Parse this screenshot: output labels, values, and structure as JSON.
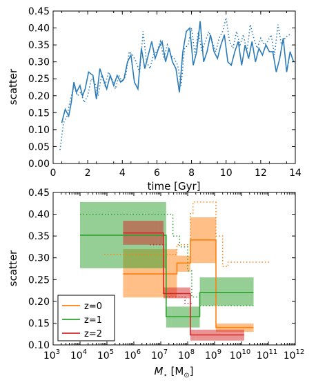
{
  "chart_data": [
    {
      "type": "line",
      "xlabel": "time [Gyr]",
      "ylabel": "scatter",
      "xlim": [
        0,
        14
      ],
      "ylim": [
        0.0,
        0.45
      ],
      "x_ticks": [
        "0",
        "2",
        "4",
        "6",
        "8",
        "10",
        "12",
        "14"
      ],
      "y_ticks": [
        "0.00",
        "0.05",
        "0.10",
        "0.15",
        "0.20",
        "0.25",
        "0.30",
        "0.35",
        "0.40",
        "0.45"
      ],
      "series": [
        {
          "style": "solid",
          "color": "#2b7bb9",
          "x": [
            0.5,
            0.7,
            0.9,
            1.05,
            1.2,
            1.35,
            1.55,
            1.7,
            1.85,
            2.05,
            2.3,
            2.5,
            2.7,
            2.9,
            3.1,
            3.3,
            3.5,
            3.7,
            3.9,
            4.1,
            4.3,
            4.5,
            4.7,
            4.9,
            5.1,
            5.3,
            5.5,
            5.7,
            5.9,
            6.1,
            6.3,
            6.5,
            6.7,
            6.9,
            7.1,
            7.3,
            7.5,
            7.7,
            7.9,
            8.1,
            8.3,
            8.5,
            8.7,
            8.9,
            9.1,
            9.3,
            9.5,
            9.7,
            9.9,
            10.1,
            10.3,
            10.5,
            10.7,
            10.9,
            11.1,
            11.3,
            11.5,
            11.7,
            11.9,
            12.1,
            12.3,
            12.5,
            12.7,
            12.9,
            13.1,
            13.3,
            13.5,
            13.7,
            13.9
          ],
          "y": [
            0.12,
            0.16,
            0.14,
            0.18,
            0.24,
            0.21,
            0.23,
            0.2,
            0.22,
            0.27,
            0.26,
            0.19,
            0.28,
            0.25,
            0.22,
            0.26,
            0.23,
            0.26,
            0.24,
            0.25,
            0.3,
            0.32,
            0.24,
            0.22,
            0.34,
            0.28,
            0.32,
            0.36,
            0.31,
            0.34,
            0.36,
            0.3,
            0.34,
            0.3,
            0.28,
            0.21,
            0.33,
            0.39,
            0.4,
            0.29,
            0.33,
            0.42,
            0.3,
            0.33,
            0.38,
            0.33,
            0.31,
            0.35,
            0.38,
            0.3,
            0.29,
            0.33,
            0.36,
            0.29,
            0.35,
            0.31,
            0.36,
            0.3,
            0.34,
            0.32,
            0.35,
            0.33,
            0.33,
            0.27,
            0.31,
            0.37,
            0.27,
            0.33,
            0.3
          ],
          "name": ""
        },
        {
          "style": "dotted",
          "color": "#2b7bb9",
          "x": [
            0.4,
            0.6,
            0.8,
            1.0,
            1.2,
            1.4,
            1.6,
            1.8,
            2.0,
            2.2,
            2.4,
            2.6,
            2.8,
            3.0,
            3.2,
            3.4,
            3.6,
            3.8,
            4.0,
            4.2,
            4.4,
            4.6,
            4.8,
            5.0,
            5.2,
            5.4,
            5.6,
            5.8,
            6.0,
            6.2,
            6.4,
            6.6,
            6.8,
            7.0,
            7.2,
            7.4,
            7.6,
            7.8,
            8.0,
            8.2,
            8.4,
            8.6,
            8.8,
            9.0,
            9.2,
            9.4,
            9.6,
            9.8,
            10.0,
            10.2,
            10.4,
            10.6,
            10.8,
            11.0,
            11.2,
            11.4,
            11.6,
            11.8,
            12.0,
            12.2,
            12.4,
            12.6,
            12.8,
            13.0,
            13.2,
            13.4,
            13.6,
            13.8
          ],
          "y": [
            0.04,
            0.12,
            0.14,
            0.19,
            0.23,
            0.2,
            0.21,
            0.18,
            0.2,
            0.25,
            0.24,
            0.2,
            0.26,
            0.23,
            0.27,
            0.25,
            0.22,
            0.26,
            0.24,
            0.26,
            0.33,
            0.32,
            0.3,
            0.27,
            0.39,
            0.3,
            0.28,
            0.32,
            0.33,
            0.36,
            0.31,
            0.35,
            0.32,
            0.31,
            0.29,
            0.23,
            0.34,
            0.35,
            0.4,
            0.32,
            0.39,
            0.33,
            0.36,
            0.39,
            0.36,
            0.33,
            0.37,
            0.39,
            0.43,
            0.36,
            0.34,
            0.39,
            0.35,
            0.38,
            0.33,
            0.41,
            0.37,
            0.34,
            0.37,
            0.35,
            0.36,
            0.38,
            0.32,
            0.41,
            0.35,
            0.37,
            0.38,
            0.38
          ],
          "name": ""
        }
      ]
    },
    {
      "type": "step",
      "xlabel": "M⋆ [M⊙]",
      "ylabel": "scatter",
      "xscale": "log",
      "xlim": [
        1000,
        1000000000000
      ],
      "ylim": [
        0.1,
        0.45
      ],
      "x_ticks": [
        "3",
        "4",
        "5",
        "6",
        "7",
        "8",
        "9",
        "10",
        "11",
        "12"
      ],
      "y_ticks": [
        "0.10",
        "0.15",
        "0.20",
        "0.25",
        "0.30",
        "0.35",
        "0.40",
        "0.45"
      ],
      "legend": {
        "placement": "lower-left",
        "entries": [
          "z=0",
          "z=1",
          "z=2"
        ]
      },
      "series": [
        {
          "name": "z=0",
          "color": "#ff7f0e",
          "edges_log10": [
            5.6,
            7.5,
            7.6,
            8.1,
            8.2,
            9.05,
            9.45,
            10.45
          ],
          "values": [
            0.263,
            0.263,
            0.288,
            0.341,
            0.341,
            0.14,
            0.14
          ],
          "band_lower": [
            0.209,
            0.209,
            0.268,
            0.288,
            0.288,
            0.13,
            0.13
          ],
          "band_upper": [
            0.32,
            0.32,
            0.305,
            0.393,
            0.393,
            0.149,
            0.149
          ],
          "dotted_edges_log10": [
            4.9,
            5.6,
            7.5,
            7.6,
            8.1,
            8.2,
            8.9,
            9.05,
            9.3,
            9.5,
            10.2,
            11.1
          ],
          "dotted_values": [
            0.308,
            0.308,
            0.307,
            0.33,
            0.401,
            0.428,
            0.428,
            0.35,
            0.28,
            0.29,
            0.29
          ]
        },
        {
          "name": "z=1",
          "color": "#2ca02c",
          "edges_log10": [
            4.0,
            7.1,
            7.2,
            7.4,
            8.0,
            8.45,
            8.55,
            10.0,
            10.45
          ],
          "values": [
            0.352,
            0.352,
            0.165,
            0.165,
            0.165,
            0.22,
            0.22,
            0.22
          ],
          "band_lower": [
            0.276,
            0.276,
            0.14,
            0.14,
            0.14,
            0.19,
            0.19,
            0.19
          ],
          "band_upper": [
            0.428,
            0.428,
            0.188,
            0.188,
            0.188,
            0.255,
            0.255,
            0.255
          ],
          "dotted_edges_log10": [
            4.0,
            7.3,
            7.45,
            7.7,
            8.0,
            8.15,
            8.45,
            10.5
          ],
          "dotted_values": [
            0.4,
            0.4,
            0.35,
            0.325,
            0.27,
            0.21,
            0.19
          ]
        },
        {
          "name": "z=2",
          "color": "#d62728",
          "edges_log10": [
            5.6,
            6.9,
            7.1,
            7.5,
            8.1,
            8.3,
            9.9,
            10.1
          ],
          "values": [
            0.357,
            0.357,
            0.218,
            0.218,
            0.123,
            0.123,
            0.123
          ],
          "band_lower": [
            0.33,
            0.33,
            0.207,
            0.207,
            0.11,
            0.11,
            0.11
          ],
          "band_upper": [
            0.385,
            0.385,
            0.232,
            0.232,
            0.135,
            0.135,
            0.135
          ],
          "dotted_edges_log10": [
            6.6,
            7.2,
            7.5,
            7.9,
            8.2
          ],
          "dotted_values": [
            0.33,
            0.21,
            0.21,
            0.195
          ]
        }
      ]
    }
  ]
}
